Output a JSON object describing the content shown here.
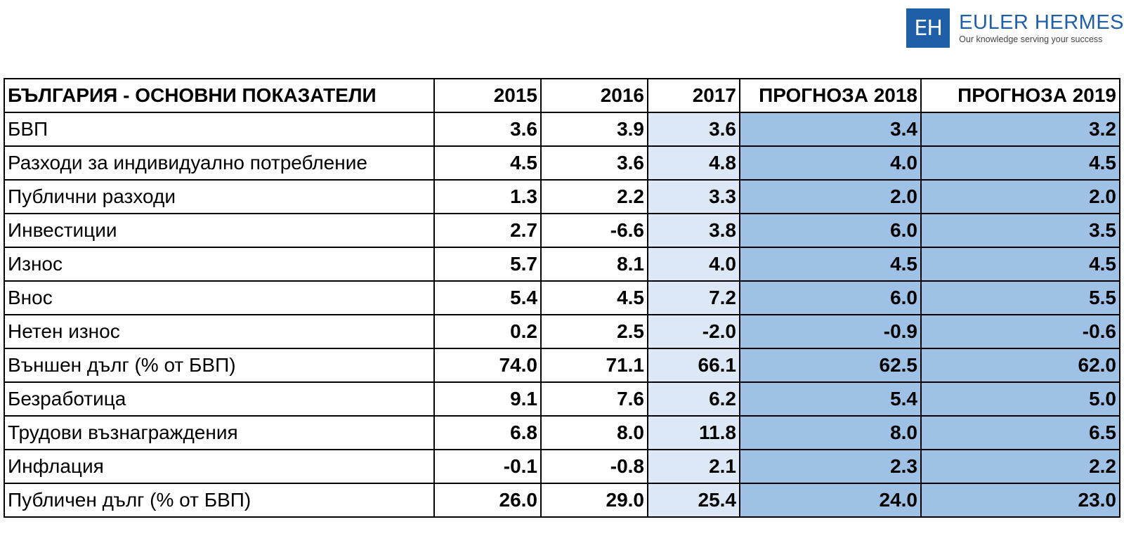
{
  "logo": {
    "mark": "EH",
    "name": "EULER HERMES",
    "tagline": "Our knowledge serving your success"
  },
  "table": {
    "headers": [
      "БЪЛГАРИЯ - ОСНОВНИ ПОКАЗАТЕЛИ",
      "2015",
      "2016",
      "2017",
      "ПРОГНОЗА 2018",
      "ПРОГНОЗА 2019"
    ],
    "rows": [
      {
        "label": "БВП",
        "values": [
          "3.6",
          "3.9",
          "3.6",
          "3.4",
          "3.2"
        ]
      },
      {
        "label": "Разходи за индивидуално потребление",
        "values": [
          "4.5",
          "3.6",
          "4.8",
          "4.0",
          "4.5"
        ]
      },
      {
        "label": "Публични разходи",
        "values": [
          "1.3",
          "2.2",
          "3.3",
          "2.0",
          "2.0"
        ]
      },
      {
        "label": "Инвестиции",
        "values": [
          "2.7",
          "-6.6",
          "3.8",
          "6.0",
          "3.5"
        ]
      },
      {
        "label": "Износ",
        "values": [
          "5.7",
          "8.1",
          "4.0",
          "4.5",
          "4.5"
        ]
      },
      {
        "label": "Внос",
        "values": [
          "5.4",
          "4.5",
          "7.2",
          "6.0",
          "5.5"
        ]
      },
      {
        "label": "Нетен износ",
        "values": [
          "0.2",
          "2.5",
          "-2.0",
          "-0.9",
          "-0.6"
        ]
      },
      {
        "label": "Външен дълг (% от БВП)",
        "values": [
          "74.0",
          "71.1",
          "66.1",
          "62.5",
          "62.0"
        ]
      },
      {
        "label": "Безработица",
        "values": [
          "9.1",
          "7.6",
          "6.2",
          "5.4",
          "5.0"
        ]
      },
      {
        "label": "Трудови възнаграждения",
        "values": [
          "6.8",
          "8.0",
          "11.8",
          "8.0",
          "6.5"
        ]
      },
      {
        "label": "Инфлация",
        "values": [
          "-0.1",
          "-0.8",
          "2.1",
          "2.3",
          "2.2"
        ]
      },
      {
        "label": "Публичен дълг (% от БВП)",
        "values": [
          "26.0",
          "29.0",
          "25.4",
          "24.0",
          "23.0"
        ]
      }
    ]
  },
  "colors": {
    "brand_blue": "#1f5fa8",
    "actual_2017_fill": "#dce8f5",
    "forecast_fill": "#9fc1e5"
  }
}
